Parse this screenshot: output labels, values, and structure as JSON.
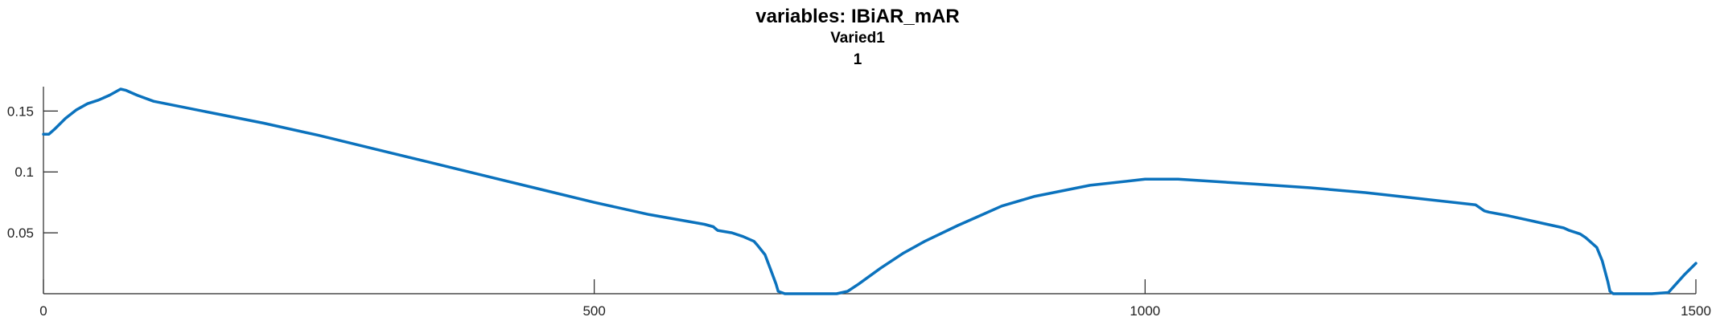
{
  "chart_data": {
    "type": "line",
    "title": "variables: IBiAR_mAR",
    "subtitle": "Varied1",
    "subtitle2": "1",
    "xlabel": "",
    "ylabel": "",
    "xlim": [
      0,
      1500
    ],
    "ylim": [
      0,
      0.17
    ],
    "xticks": [
      0,
      500,
      1000,
      1500
    ],
    "xtick_labels": [
      "0",
      "500",
      "1000",
      "1500"
    ],
    "yticks": [
      0.05,
      0.1,
      0.15
    ],
    "ytick_labels": [
      "0.05",
      "0.1",
      "0.15"
    ],
    "grid": false,
    "line_color": "#0b72bd",
    "series": [
      {
        "x": [
          0,
          5,
          10,
          20,
          30,
          40,
          50,
          60,
          70,
          75,
          85,
          100,
          150,
          200,
          250,
          300,
          350,
          400,
          450,
          500,
          550,
          600,
          608,
          612,
          625,
          635,
          645,
          648,
          655,
          660,
          665,
          667,
          670,
          673,
          680,
          700,
          720,
          730,
          740,
          760,
          780,
          800,
          830,
          850,
          870,
          900,
          950,
          1000,
          1030,
          1100,
          1150,
          1200,
          1250,
          1300,
          1308,
          1312,
          1330,
          1345,
          1360,
          1365,
          1380,
          1385,
          1395,
          1400,
          1410,
          1415,
          1420,
          1422,
          1425,
          1430,
          1440,
          1460,
          1475,
          1480,
          1490,
          1500
        ],
        "y": [
          0.131,
          0.131,
          0.135,
          0.144,
          0.151,
          0.156,
          0.159,
          0.163,
          0.168,
          0.167,
          0.163,
          0.158,
          0.149,
          0.14,
          0.13,
          0.119,
          0.108,
          0.097,
          0.086,
          0.075,
          0.065,
          0.057,
          0.055,
          0.052,
          0.05,
          0.047,
          0.043,
          0.04,
          0.032,
          0.02,
          0.008,
          0.002,
          0.001,
          0.0,
          0.0,
          0.0,
          0.0,
          0.002,
          0.008,
          0.021,
          0.033,
          0.043,
          0.056,
          0.064,
          0.072,
          0.08,
          0.089,
          0.094,
          0.094,
          0.09,
          0.087,
          0.083,
          0.078,
          0.073,
          0.068,
          0.067,
          0.064,
          0.061,
          0.058,
          0.057,
          0.054,
          0.052,
          0.049,
          0.046,
          0.038,
          0.027,
          0.01,
          0.002,
          0.0,
          0.0,
          0.0,
          0.0,
          0.001,
          0.006,
          0.016,
          0.025
        ]
      }
    ]
  }
}
